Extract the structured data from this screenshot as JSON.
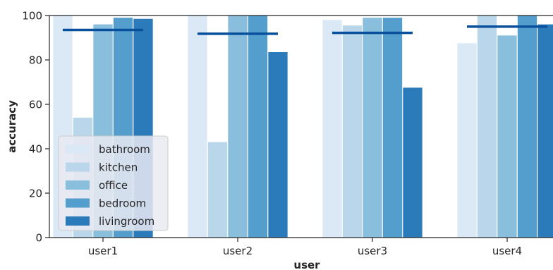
{
  "chart_data": {
    "type": "bar",
    "xlabel": "user",
    "ylabel": "accuracy",
    "ylim": [
      0,
      100
    ],
    "yticks": [
      0,
      20,
      40,
      60,
      80,
      100
    ],
    "categories": [
      "user1",
      "user2",
      "user3",
      "user4"
    ],
    "series": [
      {
        "name": "bathroom",
        "color": "#dbe9f6",
        "values": [
          100,
          100,
          98,
          87.5
        ]
      },
      {
        "name": "kitchen",
        "color": "#bad6eb",
        "values": [
          54,
          43,
          95.5,
          100
        ]
      },
      {
        "name": "office",
        "color": "#89bedc",
        "values": [
          96,
          100,
          99,
          91
        ]
      },
      {
        "name": "bedroom",
        "color": "#539ecd",
        "values": [
          99,
          100,
          99,
          100
        ]
      },
      {
        "name": "livingroom",
        "color": "#2b7bba",
        "values": [
          98.5,
          83.5,
          67.5,
          96
        ]
      }
    ],
    "mean_lines": {
      "color": "#08509b",
      "values": [
        93.5,
        91.8,
        92.2,
        95
      ]
    },
    "legend_position": "lower-left",
    "grid": false
  }
}
